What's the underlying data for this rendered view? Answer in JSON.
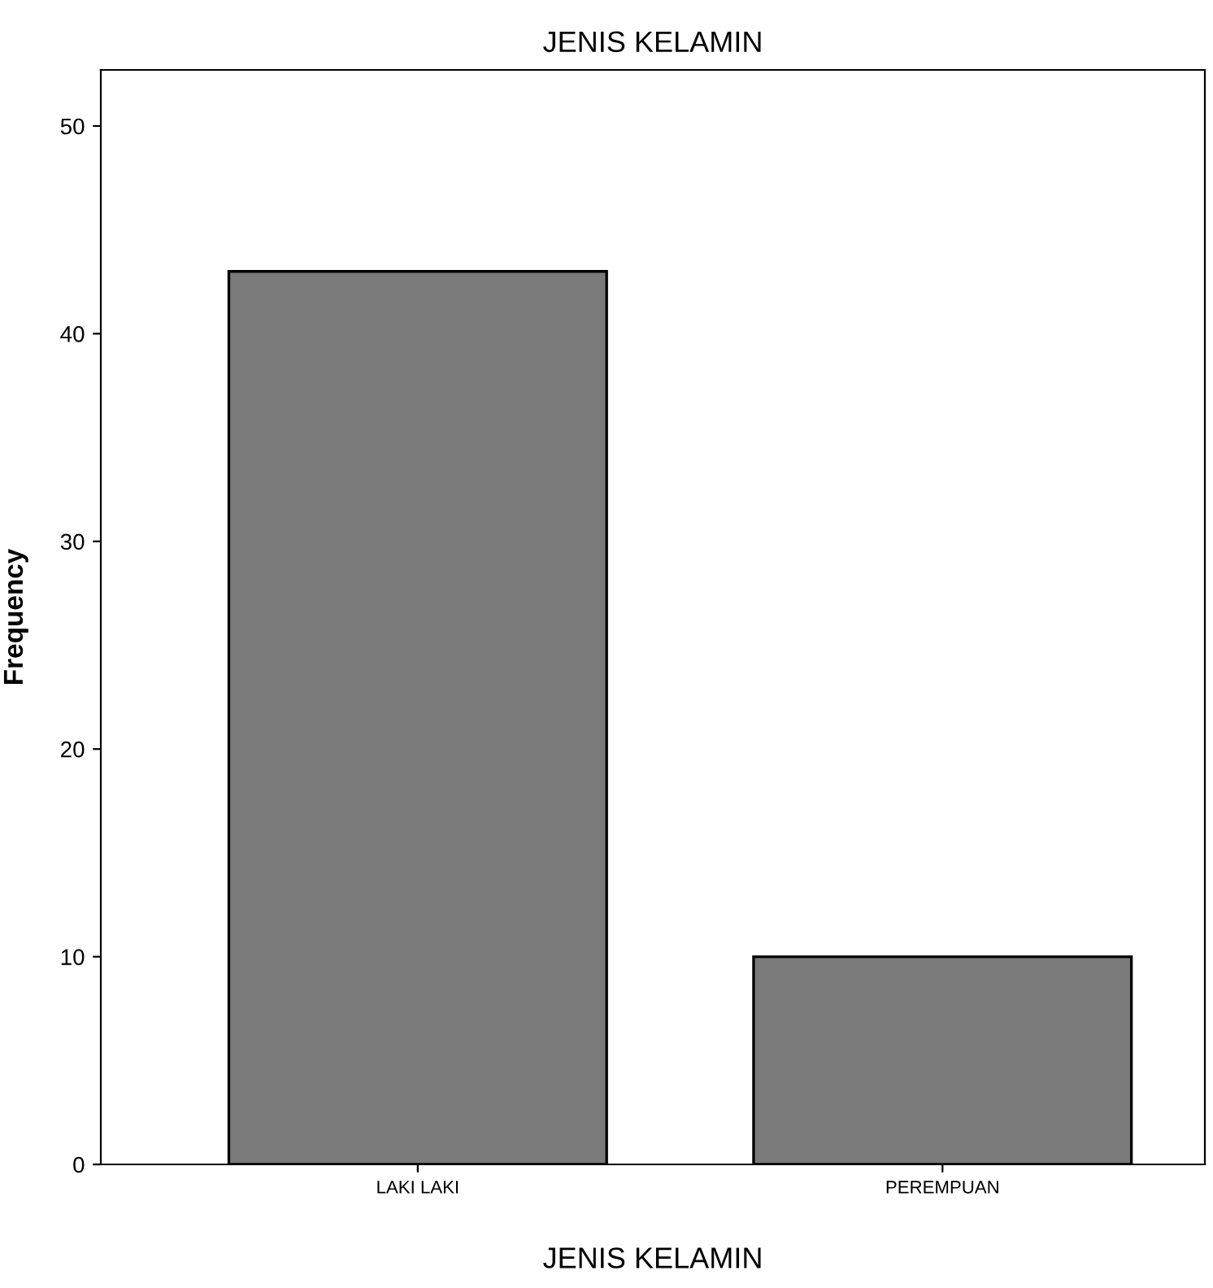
{
  "chart_data": {
    "type": "bar",
    "title": "JENIS KELAMIN",
    "xlabel": "JENIS KELAMIN",
    "ylabel": "Frequency",
    "categories": [
      "LAKI LAKI",
      "PEREMPUAN"
    ],
    "values": [
      43,
      10
    ],
    "color": "#7a7a7a",
    "ylim": [
      0,
      52.7
    ],
    "yticks": [
      0,
      10,
      20,
      30,
      40,
      50
    ],
    "grid": false
  }
}
